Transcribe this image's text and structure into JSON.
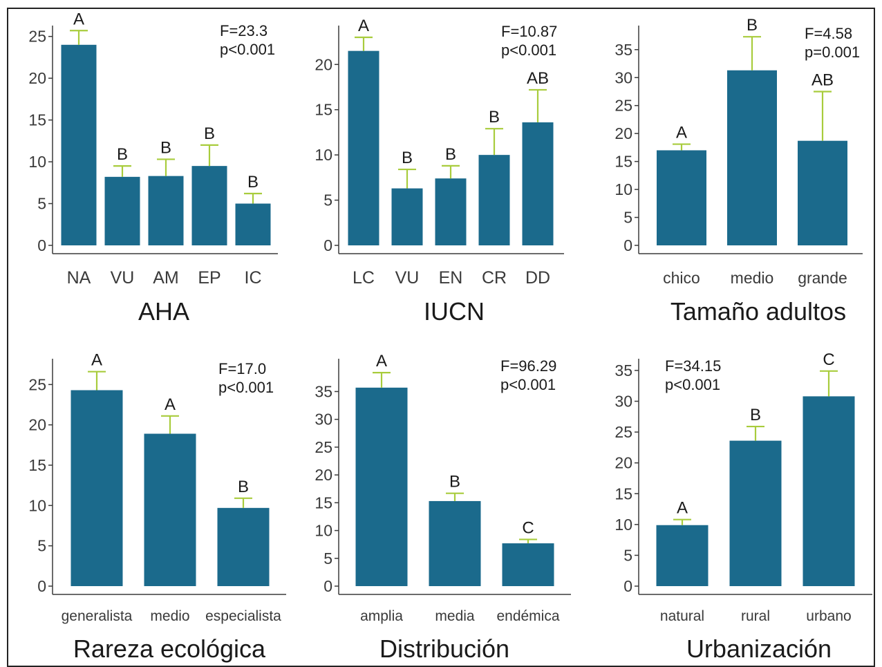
{
  "colors": {
    "bar": "#1b6a8c",
    "error": "#a8cc3c",
    "axis": "#3a3a3a",
    "border": "#222222"
  },
  "chart_data": [
    {
      "type": "bar",
      "title": "AHA",
      "categories": [
        "NA",
        "VU",
        "AM",
        "EP",
        "IC"
      ],
      "values": [
        24.0,
        8.2,
        8.3,
        9.5,
        5.0
      ],
      "errors": [
        1.7,
        1.3,
        2.0,
        2.5,
        1.2
      ],
      "letters": [
        "A",
        "B",
        "B",
        "B",
        "B"
      ],
      "stat": [
        "F=23.3",
        "p<0.001"
      ],
      "yticks": [
        0,
        5,
        10,
        15,
        20,
        25
      ],
      "ylim": [
        0,
        26.3
      ]
    },
    {
      "type": "bar",
      "title": "IUCN",
      "categories": [
        "LC",
        "VU",
        "EN",
        "CR",
        "DD"
      ],
      "values": [
        21.5,
        6.3,
        7.4,
        10.0,
        13.6
      ],
      "errors": [
        1.5,
        2.1,
        1.4,
        2.9,
        3.6
      ],
      "letters": [
        "A",
        "B",
        "B",
        "B",
        "AB"
      ],
      "stat": [
        "F=10.87",
        "p<0.001"
      ],
      "yticks": [
        0,
        5,
        10,
        15,
        20
      ],
      "ylim": [
        0,
        24.3
      ]
    },
    {
      "type": "bar",
      "title": "Tamaño adultos",
      "categories": [
        "chico",
        "medio",
        "grande"
      ],
      "values": [
        17.0,
        31.3,
        18.7
      ],
      "errors": [
        1.1,
        6.0,
        8.8
      ],
      "letters": [
        "A",
        "B",
        "AB"
      ],
      "stat": [
        "F=4.58",
        "p=0.001"
      ],
      "yticks": [
        0,
        5,
        10,
        15,
        20,
        25,
        30,
        35
      ],
      "ylim": [
        0,
        39.3
      ]
    },
    {
      "type": "bar",
      "title": "Rareza ecológica",
      "categories": [
        "generalista",
        "medio",
        "especialista"
      ],
      "values": [
        24.3,
        18.9,
        9.7
      ],
      "errors": [
        2.3,
        2.2,
        1.2
      ],
      "letters": [
        "A",
        "A",
        "B"
      ],
      "stat": [
        "F=17.0",
        "p<0.001"
      ],
      "yticks": [
        0,
        5,
        10,
        15,
        20,
        25
      ],
      "ylim": [
        0,
        28.2
      ]
    },
    {
      "type": "bar",
      "title": "Distribución",
      "categories": [
        "amplia",
        "media",
        "endémica"
      ],
      "values": [
        35.7,
        15.3,
        7.7
      ],
      "errors": [
        2.7,
        1.4,
        0.7
      ],
      "letters": [
        "A",
        "B",
        "C"
      ],
      "stat": [
        "F=96.29",
        "p<0.001"
      ],
      "yticks": [
        0,
        5,
        10,
        15,
        20,
        25,
        30,
        35
      ],
      "ylim": [
        0,
        40.9
      ]
    },
    {
      "type": "bar",
      "title": "Urbanización",
      "categories": [
        "natural",
        "rural",
        "urbano"
      ],
      "values": [
        9.9,
        23.6,
        30.8
      ],
      "errors": [
        0.9,
        2.3,
        4.1
      ],
      "letters": [
        "A",
        "B",
        "C"
      ],
      "stat": [
        "F=34.15",
        "p<0.001"
      ],
      "yticks": [
        0,
        5,
        10,
        15,
        20,
        25,
        30,
        35
      ],
      "ylim": [
        0,
        36.9
      ]
    }
  ]
}
